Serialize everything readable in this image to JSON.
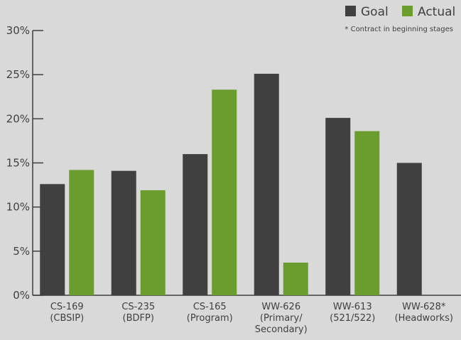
{
  "chart_data": {
    "type": "bar",
    "categories": [
      [
        "CS-169",
        "(CBSIP)"
      ],
      [
        "CS-235",
        "(BDFP)"
      ],
      [
        "CS-165",
        "(Program)"
      ],
      [
        "WW-626",
        "(Primary/",
        "Secondary)"
      ],
      [
        "WW-613",
        "(521/522)"
      ],
      [
        "WW-628*",
        "(Headworks)"
      ]
    ],
    "series": [
      {
        "name": "Goal",
        "color": "#404040",
        "values": [
          12.6,
          14.1,
          16.0,
          25.1,
          20.1,
          15.0
        ]
      },
      {
        "name": "Actual",
        "color": "#6a9c2e",
        "values": [
          14.2,
          11.9,
          23.3,
          3.7,
          18.6,
          null
        ]
      }
    ],
    "ylim": [
      0,
      30
    ],
    "yticks": [
      0,
      5,
      10,
      15,
      20,
      25,
      30
    ],
    "ytick_labels": [
      "0%",
      "5%",
      "10%",
      "15%",
      "20%",
      "25%",
      "30%"
    ],
    "grid": false,
    "legend_position": "top-right",
    "annotation": "* Contract in beginning stages"
  }
}
